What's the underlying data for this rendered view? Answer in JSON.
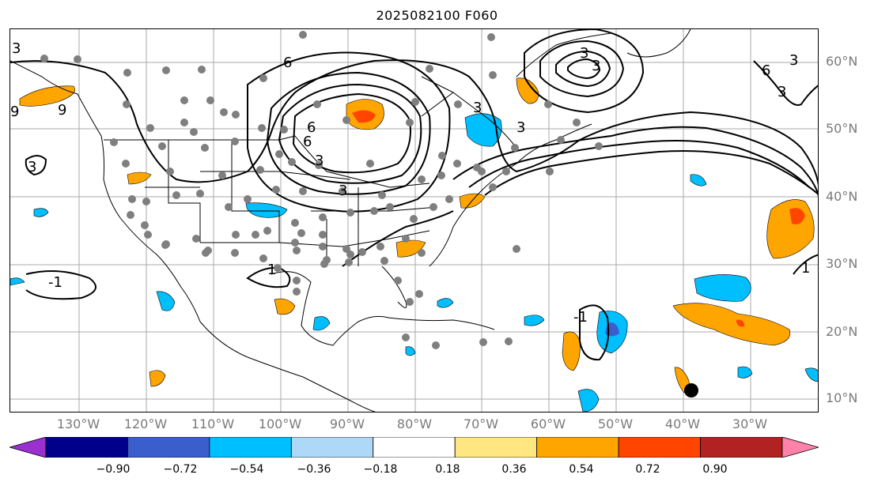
{
  "title": "2025082100 F060",
  "map": {
    "lat_labels": [
      "60°N",
      "50°N",
      "40°N",
      "30°N",
      "20°N",
      "10°N"
    ],
    "lon_labels": [
      "130°W",
      "120°W",
      "110°W",
      "100°W",
      "90°W",
      "80°W",
      "70°W",
      "60°W",
      "50°W",
      "40°W",
      "30°W"
    ],
    "contour_labels": [
      "3",
      "3",
      "9",
      "6",
      "6",
      "3",
      "3",
      "3",
      "3",
      "6",
      "3",
      "3",
      "3",
      "-1",
      "1",
      "-1",
      "1",
      "6",
      "9",
      "3"
    ]
  },
  "colorbar": {
    "ticks": [
      "−0.90",
      "−0.72",
      "−0.54",
      "−0.36",
      "−0.18",
      "0.18",
      "0.36",
      "0.54",
      "0.72",
      "0.90"
    ],
    "colors": [
      "#9b30d0",
      "#00008b",
      "#3a5fcd",
      "#00bfff",
      "#add8f7",
      "#ffffff",
      "#ffe680",
      "#ffa500",
      "#ff4500",
      "#b22222",
      "#ff82ab"
    ]
  }
}
